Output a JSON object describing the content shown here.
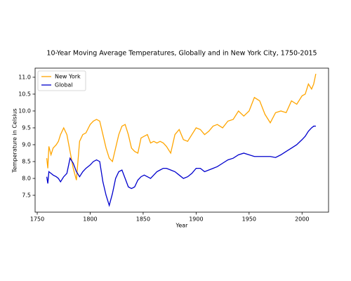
{
  "chart_data": {
    "type": "line",
    "title": "10-Year Moving Average Temperatures, Globally and in New York City, 1750-2015",
    "xlabel": "Year",
    "ylabel": "Temperature in Celsius",
    "x": [
      1759,
      1760,
      1761,
      1763,
      1765,
      1768,
      1770,
      1772,
      1775,
      1778,
      1781,
      1784,
      1787,
      1790,
      1793,
      1796,
      1800,
      1803,
      1806,
      1809,
      1812,
      1815,
      1818,
      1821,
      1824,
      1827,
      1830,
      1833,
      1836,
      1839,
      1842,
      1845,
      1848,
      1851,
      1854,
      1857,
      1860,
      1863,
      1866,
      1869,
      1872,
      1876,
      1880,
      1884,
      1888,
      1892,
      1896,
      1900,
      1904,
      1908,
      1912,
      1916,
      1920,
      1925,
      1930,
      1935,
      1940,
      1945,
      1950,
      1955,
      1960,
      1965,
      1970,
      1975,
      1980,
      1985,
      1990,
      1995,
      2000,
      2003,
      2006,
      2009,
      2011,
      2013
    ],
    "series": [
      {
        "name": "New York",
        "color": "#ffa500",
        "values": [
          8.6,
          8.3,
          8.95,
          8.7,
          8.9,
          9.0,
          9.1,
          9.3,
          9.5,
          9.3,
          8.8,
          8.3,
          7.95,
          9.1,
          9.3,
          9.35,
          9.6,
          9.7,
          9.75,
          9.7,
          9.3,
          8.9,
          8.6,
          8.5,
          8.9,
          9.3,
          9.55,
          9.6,
          9.3,
          8.9,
          8.8,
          8.75,
          9.2,
          9.25,
          9.3,
          9.05,
          9.1,
          9.05,
          9.1,
          9.05,
          8.95,
          8.75,
          9.3,
          9.45,
          9.15,
          9.1,
          9.3,
          9.5,
          9.45,
          9.3,
          9.4,
          9.55,
          9.6,
          9.5,
          9.7,
          9.75,
          10.0,
          9.85,
          10.0,
          10.4,
          10.3,
          9.9,
          9.65,
          9.95,
          10.0,
          9.95,
          10.3,
          10.2,
          10.45,
          10.5,
          10.8,
          10.65,
          10.8,
          11.1
        ]
      },
      {
        "name": "Global",
        "color": "#0000cd",
        "values": [
          8.05,
          7.85,
          8.2,
          8.15,
          8.1,
          8.05,
          8.0,
          7.9,
          8.05,
          8.15,
          8.6,
          8.45,
          8.2,
          8.05,
          8.2,
          8.3,
          8.4,
          8.5,
          8.55,
          8.5,
          7.9,
          7.5,
          7.2,
          7.55,
          8.0,
          8.2,
          8.25,
          8.0,
          7.75,
          7.7,
          7.75,
          7.95,
          8.05,
          8.1,
          8.05,
          8.0,
          8.1,
          8.2,
          8.25,
          8.3,
          8.3,
          8.25,
          8.2,
          8.1,
          8.0,
          8.05,
          8.15,
          8.3,
          8.3,
          8.2,
          8.25,
          8.3,
          8.35,
          8.45,
          8.55,
          8.6,
          8.7,
          8.75,
          8.7,
          8.65,
          8.65,
          8.65,
          8.65,
          8.62,
          8.7,
          8.8,
          8.9,
          9.0,
          9.15,
          9.25,
          9.4,
          9.5,
          9.55,
          9.55
        ]
      }
    ],
    "xlim": [
      1748,
      2025
    ],
    "xticks": [
      1750,
      1800,
      1850,
      1900,
      1950,
      2000
    ],
    "ylim": [
      7.0,
      11.27
    ],
    "yticks": [
      7.5,
      {
        "value": 8,
        "label": "8.0"
      },
      8.5,
      {
        "value": 9,
        "label": "9.0"
      },
      9.5,
      {
        "value": 10,
        "label": "10.0"
      },
      10.5,
      {
        "value": 11,
        "label": "11.0"
      }
    ],
    "legend": "upper left"
  }
}
